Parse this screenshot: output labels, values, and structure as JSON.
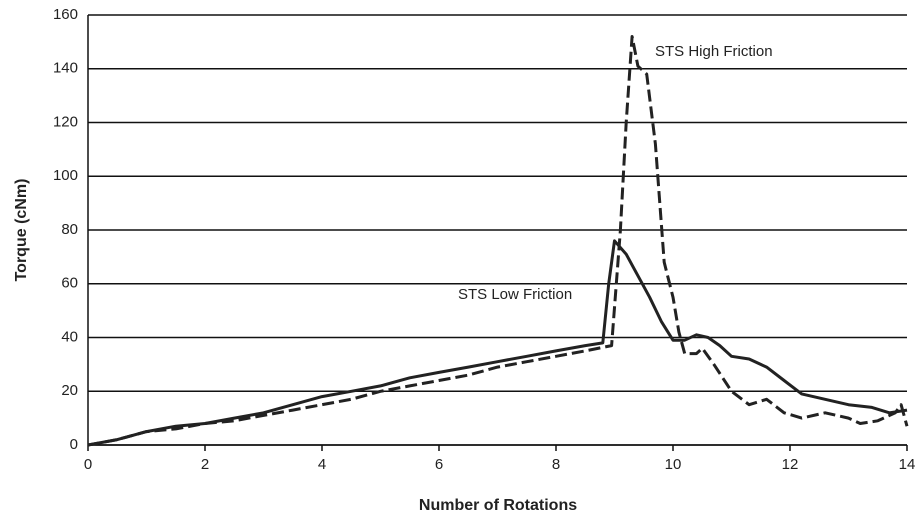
{
  "chart_data": {
    "type": "line",
    "x_label": "Number of Rotations",
    "y_label": "Torque (cNm)",
    "xlim": [
      0,
      14
    ],
    "xticks": [
      0,
      2,
      4,
      6,
      8,
      10,
      12,
      14
    ],
    "ylim": [
      0,
      160
    ],
    "yticks": [
      0,
      20,
      40,
      60,
      80,
      100,
      120,
      140,
      160
    ],
    "grid": true,
    "series": [
      {
        "name": "STS Low Friction",
        "color": "#222222",
        "dashed": false,
        "x": [
          0,
          0.5,
          1,
          1.5,
          2,
          2.5,
          3,
          3.5,
          4,
          4.5,
          5,
          5.5,
          6,
          6.5,
          7,
          7.5,
          8,
          8.5,
          8.8,
          8.9,
          9.0,
          9.2,
          9.4,
          9.6,
          9.8,
          10.0,
          10.2,
          10.4,
          10.6,
          10.8,
          11.0,
          11.3,
          11.6,
          11.9,
          12.2,
          12.6,
          13.0,
          13.4,
          13.7,
          14.0
        ],
        "values": [
          0,
          2,
          5,
          7,
          8,
          10,
          12,
          15,
          18,
          20,
          22,
          25,
          27,
          29,
          31,
          33,
          35,
          37,
          38,
          60,
          76,
          71,
          63,
          55,
          46,
          39,
          39,
          41,
          40,
          37,
          33,
          32,
          29,
          24,
          19,
          17,
          15,
          14,
          12,
          13
        ]
      },
      {
        "name": "STS High Friction",
        "color": "#222222",
        "dashed": true,
        "x": [
          0,
          0.5,
          1,
          1.5,
          2,
          2.5,
          3,
          3.5,
          4,
          4.5,
          5,
          5.5,
          6,
          6.5,
          7,
          7.5,
          8,
          8.5,
          8.95,
          9.1,
          9.2,
          9.3,
          9.4,
          9.55,
          9.7,
          9.85,
          10.0,
          10.1,
          10.2,
          10.4,
          10.5,
          10.7,
          11.0,
          11.3,
          11.6,
          11.9,
          12.2,
          12.6,
          13.0,
          13.2,
          13.5,
          13.8,
          13.9,
          14.0
        ],
        "values": [
          0,
          2,
          5,
          6,
          8,
          9,
          11,
          13,
          15,
          17,
          20,
          22,
          24,
          26,
          29,
          31,
          33,
          35,
          37,
          80,
          120,
          152,
          141,
          138,
          112,
          68,
          55,
          42,
          34,
          34,
          36,
          30,
          20,
          15,
          17,
          12,
          10,
          12,
          10,
          8,
          9,
          12,
          15,
          7
        ]
      }
    ]
  }
}
